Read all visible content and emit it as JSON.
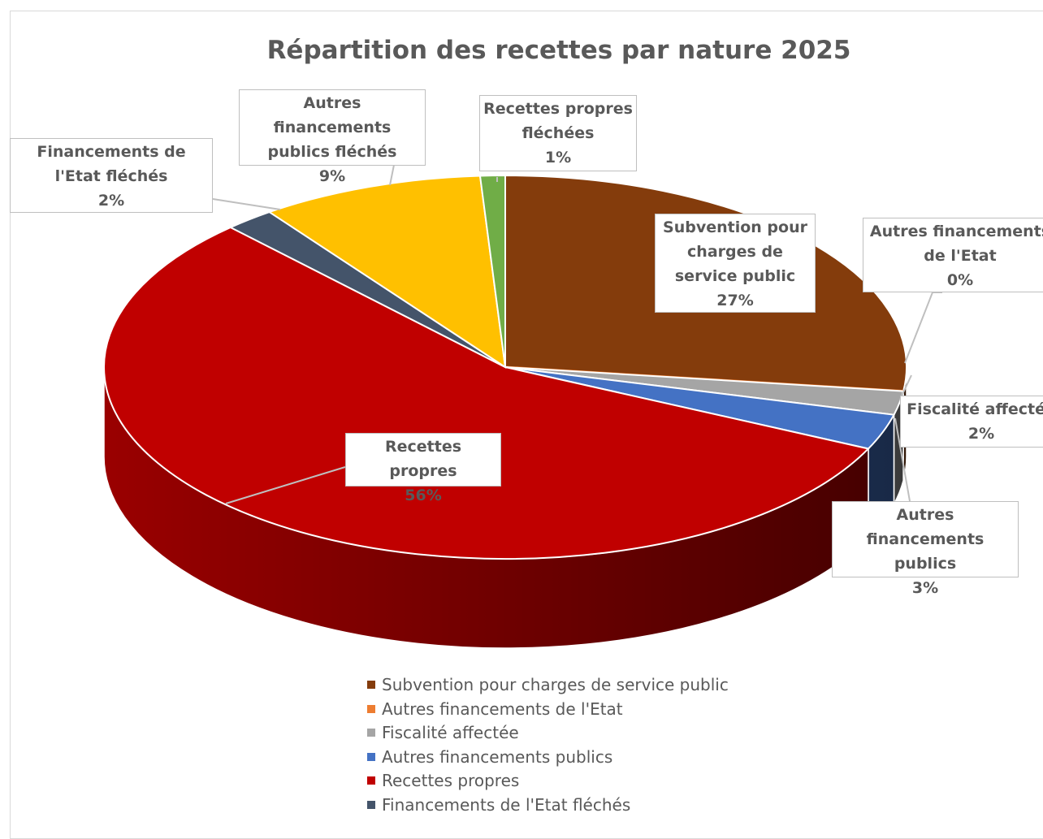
{
  "chart_data": {
    "type": "pie3d",
    "title": "Répartition des recettes par nature 2025",
    "categories": [
      "Subvention pour charges de service public",
      "Autres financements de l'Etat",
      "Fiscalité affectée",
      "Autres financements publics",
      "Recettes propres",
      "Financements de l'Etat fléchés",
      "Autres financements publics fléchés",
      "Recettes propres fléchées"
    ],
    "values": [
      27,
      0,
      2,
      3,
      56,
      2,
      9,
      1
    ],
    "value_labels": [
      "27%",
      "0%",
      "2%",
      "3%",
      "56%",
      "2%",
      "9%",
      "1%"
    ],
    "colors": [
      "#843c0c",
      "#ed7d31",
      "#a5a5a5",
      "#4472c4",
      "#c00000",
      "#44546a",
      "#ffc000",
      "#70ad47"
    ],
    "legend": [
      "Subvention pour charges de service public",
      "Autres financements de l'Etat",
      "Fiscalité affectée",
      "Autres financements publics",
      "Recettes propres",
      "Financements de l'Etat fléchés"
    ],
    "legend_position": "bottom"
  }
}
